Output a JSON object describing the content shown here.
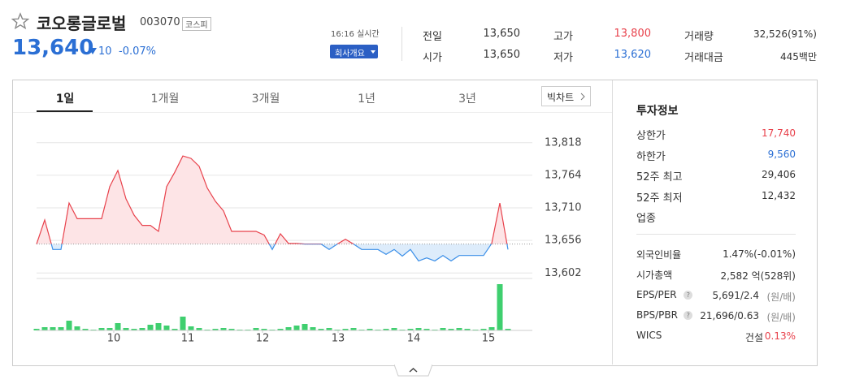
{
  "header": {
    "title": "코오롱글로벌",
    "code": "003070",
    "market": "코스피",
    "price": "13,640",
    "change": "10",
    "change_rate": "-0.07%",
    "time": "16:16 실시간",
    "company_button": "회사개요"
  },
  "quote": [
    {
      "label": "전일",
      "value": "13,650"
    },
    {
      "label": "시가",
      "value": "13,650"
    },
    {
      "label": "고가",
      "value": "13,800"
    },
    {
      "label": "저가",
      "value": "13,620"
    },
    {
      "label": "거래량",
      "value": "32,526(91%)"
    },
    {
      "label": "거래대금",
      "value": "445백만"
    }
  ],
  "tabs": [
    "1일",
    "1개월",
    "3개월",
    "1년",
    "3년"
  ],
  "big_chart": "빅차트",
  "invest": {
    "title": "투자정보",
    "rows": [
      {
        "label": "상한가",
        "value": "17,740"
      },
      {
        "label": "하한가",
        "value": "9,560"
      },
      {
        "label": "52주 최고",
        "value": "29,406"
      },
      {
        "label": "52주 최저",
        "value": "12,432"
      },
      {
        "label": "업종",
        "value": ""
      }
    ],
    "rows2": [
      {
        "label": "외국인비율",
        "value": "1.47%(-0.01%)"
      },
      {
        "label": "시가총액",
        "value": "2,582 억(528위)"
      },
      {
        "label": "EPS/PER",
        "help": "?",
        "value": "5,691/2.4",
        "unit": "(원/배)"
      },
      {
        "label": "BPS/PBR",
        "help": "?",
        "value": "21,696/0.63",
        "unit": "(원/배)"
      },
      {
        "label": "WICS",
        "value": "건설",
        "rate": "0.13%"
      }
    ]
  },
  "chart_data": {
    "type": "line",
    "baseline": 13650,
    "up_color": "#e8414b",
    "down_color": "#3b8fe8",
    "up_fill": "#fde4e6",
    "down_fill": "#ddecfb",
    "values": [
      13650,
      13690,
      13641,
      13641,
      13718,
      13692,
      13692,
      13692,
      13692,
      13745,
      13772,
      13725,
      13698,
      13681,
      13681,
      13671,
      13745,
      13769,
      13796,
      13792,
      13779,
      13743,
      13721,
      13705,
      13671,
      13671,
      13671,
      13671,
      13665,
      13641,
      13667,
      13651,
      13651,
      13650,
      13650,
      13650,
      13641,
      13650,
      13658,
      13650,
      13641,
      13641,
      13641,
      13633,
      13641,
      13630,
      13641,
      13622,
      13627,
      13622,
      13631,
      13622,
      13631,
      13631,
      13631,
      13631,
      13651,
      13718,
      13641
    ],
    "ylim": [
      13597,
      13846
    ],
    "yticks": [
      {
        "value": 13602,
        "label": "13,602"
      },
      {
        "value": 13656,
        "label": "13,656"
      },
      {
        "value": 13710,
        "label": "13,710"
      },
      {
        "value": 13764,
        "label": "13,764"
      },
      {
        "value": 13818,
        "label": "13,818"
      }
    ],
    "xlim": [
      0,
      58
    ],
    "xticks": [
      {
        "value": 9.5,
        "label": "10"
      },
      {
        "value": 18.6,
        "label": "11"
      },
      {
        "value": 27.8,
        "label": "12"
      },
      {
        "value": 37.1,
        "label": "13"
      },
      {
        "value": 46.4,
        "label": "14"
      },
      {
        "value": 55.6,
        "label": "15"
      }
    ],
    "volume": {
      "color": "#3fcf6f",
      "ylim": [
        0,
        9300
      ],
      "values": [
        300,
        600,
        600,
        600,
        1800,
        750,
        300,
        150,
        450,
        450,
        1350,
        450,
        300,
        450,
        1050,
        1350,
        900,
        300,
        2550,
        750,
        450,
        150,
        300,
        450,
        300,
        150,
        150,
        450,
        300,
        150,
        300,
        600,
        900,
        1200,
        600,
        300,
        450,
        150,
        300,
        450,
        150,
        300,
        150,
        300,
        450,
        150,
        300,
        450,
        300,
        150,
        450,
        300,
        450,
        300,
        150,
        300,
        600,
        8550,
        300
      ]
    }
  }
}
